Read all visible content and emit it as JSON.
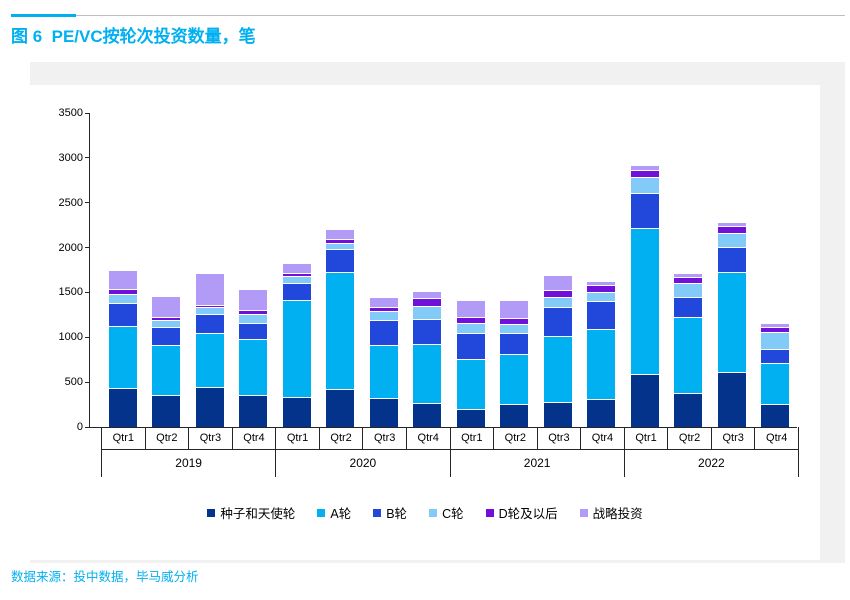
{
  "page": {
    "title": "图 6  PE/VC按轮次投资数量，笔",
    "source_note": "数据来源：投中数据，毕马威分析"
  },
  "colors": {
    "accent_cyan": "#00B0F0",
    "panel_gray": "#F1F1F2",
    "axis_black": "#262626",
    "rule_gray": "#BFBFBF"
  },
  "chart_data": {
    "type": "bar",
    "stacked": true,
    "title": "图 6  PE/VC按轮次投资数量，笔",
    "unit": "笔",
    "group_labels": [
      "2019",
      "2020",
      "2021",
      "2022"
    ],
    "categories": [
      "Qtr1",
      "Qtr2",
      "Qtr3",
      "Qtr4"
    ],
    "yticks": [
      "0",
      "500",
      "1000",
      "1500",
      "2000",
      "2500",
      "3000",
      "3500"
    ],
    "ytick_interval": 500,
    "ylim": [
      0,
      3500
    ],
    "grid": false,
    "legend_position": "bottom",
    "series": [
      {
        "name": "种子和天使轮",
        "color": "#04338C",
        "values": [
          435,
          355,
          445,
          355,
          335,
          425,
          325,
          270,
          200,
          255,
          280,
          310,
          590,
          380,
          615,
          255
        ]
      },
      {
        "name": "A轮",
        "color": "#00B0F0",
        "values": [
          690,
          560,
          600,
          625,
          1080,
          1305,
          590,
          660,
          560,
          560,
          735,
          780,
          1630,
          845,
          1115,
          455
        ]
      },
      {
        "name": "B轮",
        "color": "#2248DB",
        "values": [
          255,
          200,
          210,
          180,
          190,
          255,
          280,
          270,
          290,
          235,
          325,
          310,
          390,
          225,
          280,
          165
        ]
      },
      {
        "name": "C轮",
        "color": "#82CAF8",
        "values": [
          100,
          80,
          80,
          100,
          80,
          70,
          100,
          145,
          110,
          100,
          110,
          100,
          180,
          155,
          155,
          180
        ]
      },
      {
        "name": "D轮及以后",
        "color": "#7110D8",
        "values": [
          55,
          35,
          25,
          45,
          35,
          45,
          45,
          90,
          65,
          65,
          80,
          80,
          80,
          65,
          80,
          55
        ]
      },
      {
        "name": "战略投资",
        "color": "#B29BF7",
        "values": [
          215,
          230,
          355,
          235,
          110,
          110,
          110,
          85,
          190,
          200,
          165,
          45,
          55,
          45,
          45,
          45
        ]
      }
    ]
  }
}
